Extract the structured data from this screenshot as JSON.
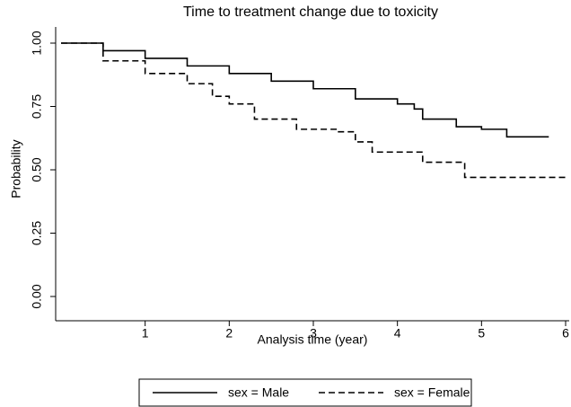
{
  "chart_data": {
    "type": "step",
    "title": "Time to treatment change due to toxicity",
    "x_label": "Analysis time (year)",
    "y_label": "Probability",
    "xlim": [
      0,
      6
    ],
    "xticks": [
      1,
      2,
      3,
      4,
      5,
      6
    ],
    "ylim": [
      0,
      1
    ],
    "yticks": [
      {
        "value": 0,
        "label": "0.00"
      },
      {
        "value": 0.25,
        "label": "0.25"
      },
      {
        "value": 0.5,
        "label": "0.50"
      },
      {
        "value": 0.75,
        "label": "0.75"
      },
      {
        "value": 1,
        "label": "1.00"
      }
    ],
    "legend": "bottom",
    "series": [
      {
        "name": "sex = Male",
        "color": "#000000",
        "dash": "solid",
        "x": [
          0,
          0.5,
          1,
          1.5,
          2,
          2.5,
          3,
          3.5,
          4,
          4.2,
          4.3,
          4.7,
          5,
          5.3,
          5.8
        ],
        "values": [
          1,
          0.97,
          0.94,
          0.91,
          0.88,
          0.85,
          0.82,
          0.78,
          0.76,
          0.74,
          0.7,
          0.67,
          0.66,
          0.63,
          0.63
        ]
      },
      {
        "name": "sex = Female",
        "color": "#000000",
        "dash": "dashed",
        "x": [
          0,
          0.5,
          1,
          1.5,
          1.8,
          2,
          2.3,
          2.8,
          3.3,
          3.5,
          3.7,
          4.3,
          4.8,
          6
        ],
        "values": [
          1,
          0.93,
          0.88,
          0.84,
          0.79,
          0.76,
          0.7,
          0.66,
          0.65,
          0.61,
          0.57,
          0.53,
          0.47,
          0.47
        ]
      }
    ]
  }
}
